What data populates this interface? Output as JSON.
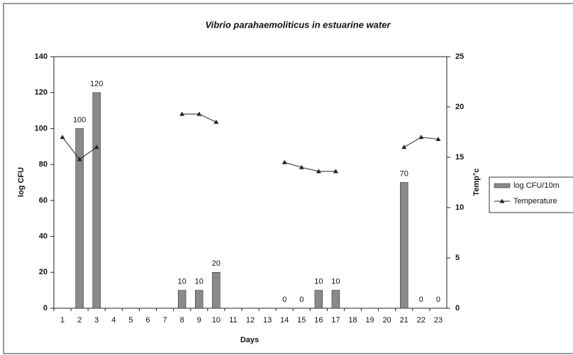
{
  "chart_data": {
    "type": "bar",
    "title": "Vibrio parahaemoliticus in estuarine water",
    "x_label": "Days",
    "y_label": "log CFU",
    "y2_label": "Temp°c",
    "categories": [
      "1",
      "2",
      "3",
      "4",
      "5",
      "6",
      "7",
      "8",
      "9",
      "10",
      "11",
      "12",
      "13",
      "14",
      "15",
      "16",
      "17",
      "18",
      "19",
      "20",
      "21",
      "22",
      "23"
    ],
    "series": [
      {
        "name": "log CFU/10m",
        "type": "bar",
        "color": "#8a8a8a",
        "values": [
          null,
          100,
          120,
          null,
          null,
          null,
          null,
          10,
          10,
          20,
          null,
          null,
          null,
          0,
          0,
          10,
          10,
          null,
          null,
          null,
          70,
          0,
          0
        ]
      },
      {
        "name": "Temperature",
        "type": "line",
        "axis": "y2",
        "color": "#222222",
        "values": [
          17,
          14.8,
          16,
          null,
          null,
          null,
          null,
          19.3,
          19.3,
          18.5,
          null,
          null,
          null,
          14.5,
          14,
          13.6,
          13.6,
          null,
          null,
          null,
          16,
          17,
          16.8
        ]
      }
    ],
    "ylim": [
      0,
      140
    ],
    "yticks": [
      0,
      20,
      40,
      60,
      80,
      100,
      120,
      140
    ],
    "y2lim": [
      0,
      25
    ],
    "y2ticks": [
      0,
      5,
      10,
      15,
      20,
      25
    ],
    "legend": "right"
  }
}
